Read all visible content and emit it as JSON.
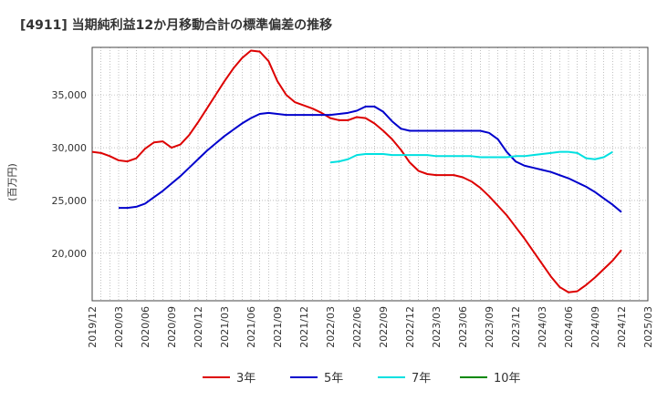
{
  "chart_data": {
    "type": "line",
    "title": "[4911]  当期純利益12か月移動合計の標準偏差の推移",
    "ylabel": "(百万円)",
    "xlabel": "",
    "ylim": [
      15500,
      39500
    ],
    "yticks": [
      20000,
      25000,
      30000,
      35000
    ],
    "ytick_labels": [
      "20,000",
      "25,000",
      "30,000",
      "35,000"
    ],
    "xlim": [
      "2019-12",
      "2025-03"
    ],
    "xtick_labels": [
      "2019/12",
      "2020/03",
      "2020/06",
      "2020/09",
      "2020/12",
      "2021/03",
      "2021/06",
      "2021/09",
      "2021/12",
      "2022/03",
      "2022/06",
      "2022/09",
      "2022/12",
      "2023/03",
      "2023/06",
      "2023/09",
      "2023/12",
      "2024/03",
      "2024/06",
      "2024/09",
      "2024/12",
      "2025/03"
    ],
    "grid": true,
    "legend_position": "bottom",
    "series": [
      {
        "name": "3年",
        "color": "#dd0000",
        "start": "2019-12",
        "values": [
          29600,
          29500,
          29200,
          28800,
          28700,
          29000,
          29900,
          30500,
          30600,
          30000,
          30300,
          31200,
          32400,
          33700,
          35000,
          36300,
          37500,
          38500,
          39200,
          39100,
          38200,
          36300,
          35000,
          34300,
          34000,
          33700,
          33300,
          32800,
          32600,
          32600,
          32900,
          32800,
          32300,
          31600,
          30800,
          29800,
          28600,
          27800,
          27500,
          27400,
          27400,
          27400,
          27200,
          26800,
          26200,
          25400,
          24500,
          23600,
          22500,
          21400,
          20200,
          19000,
          17800,
          16800,
          16300,
          16400,
          17000,
          17700,
          18500,
          19300,
          20300
        ]
      },
      {
        "name": "5年",
        "color": "#0000cc",
        "start": "2020-03",
        "values": [
          24300,
          24300,
          24400,
          24700,
          25300,
          25900,
          26600,
          27300,
          28100,
          28900,
          29700,
          30400,
          31100,
          31700,
          32300,
          32800,
          33200,
          33300,
          33200,
          33100,
          33100,
          33100,
          33100,
          33100,
          33100,
          33200,
          33300,
          33500,
          33900,
          33900,
          33400,
          32500,
          31800,
          31600,
          31600,
          31600,
          31600,
          31600,
          31600,
          31600,
          31600,
          31600,
          31400,
          30800,
          29600,
          28700,
          28300,
          28100,
          27900,
          27700,
          27400,
          27100,
          26700,
          26300,
          25800,
          25200,
          24600,
          23900
        ]
      },
      {
        "name": "7年",
        "color": "#00e0e0",
        "start": "2022-03",
        "values": [
          28600,
          28700,
          28900,
          29300,
          29400,
          29400,
          29400,
          29300,
          29300,
          29300,
          29300,
          29300,
          29200,
          29200,
          29200,
          29200,
          29200,
          29100,
          29100,
          29100,
          29100,
          29200,
          29200,
          29300,
          29400,
          29500,
          29600,
          29600,
          29500,
          29000,
          28900,
          29100,
          29600
        ]
      },
      {
        "name": "10年",
        "color": "#008800",
        "start": "2024-12",
        "values": []
      }
    ]
  }
}
